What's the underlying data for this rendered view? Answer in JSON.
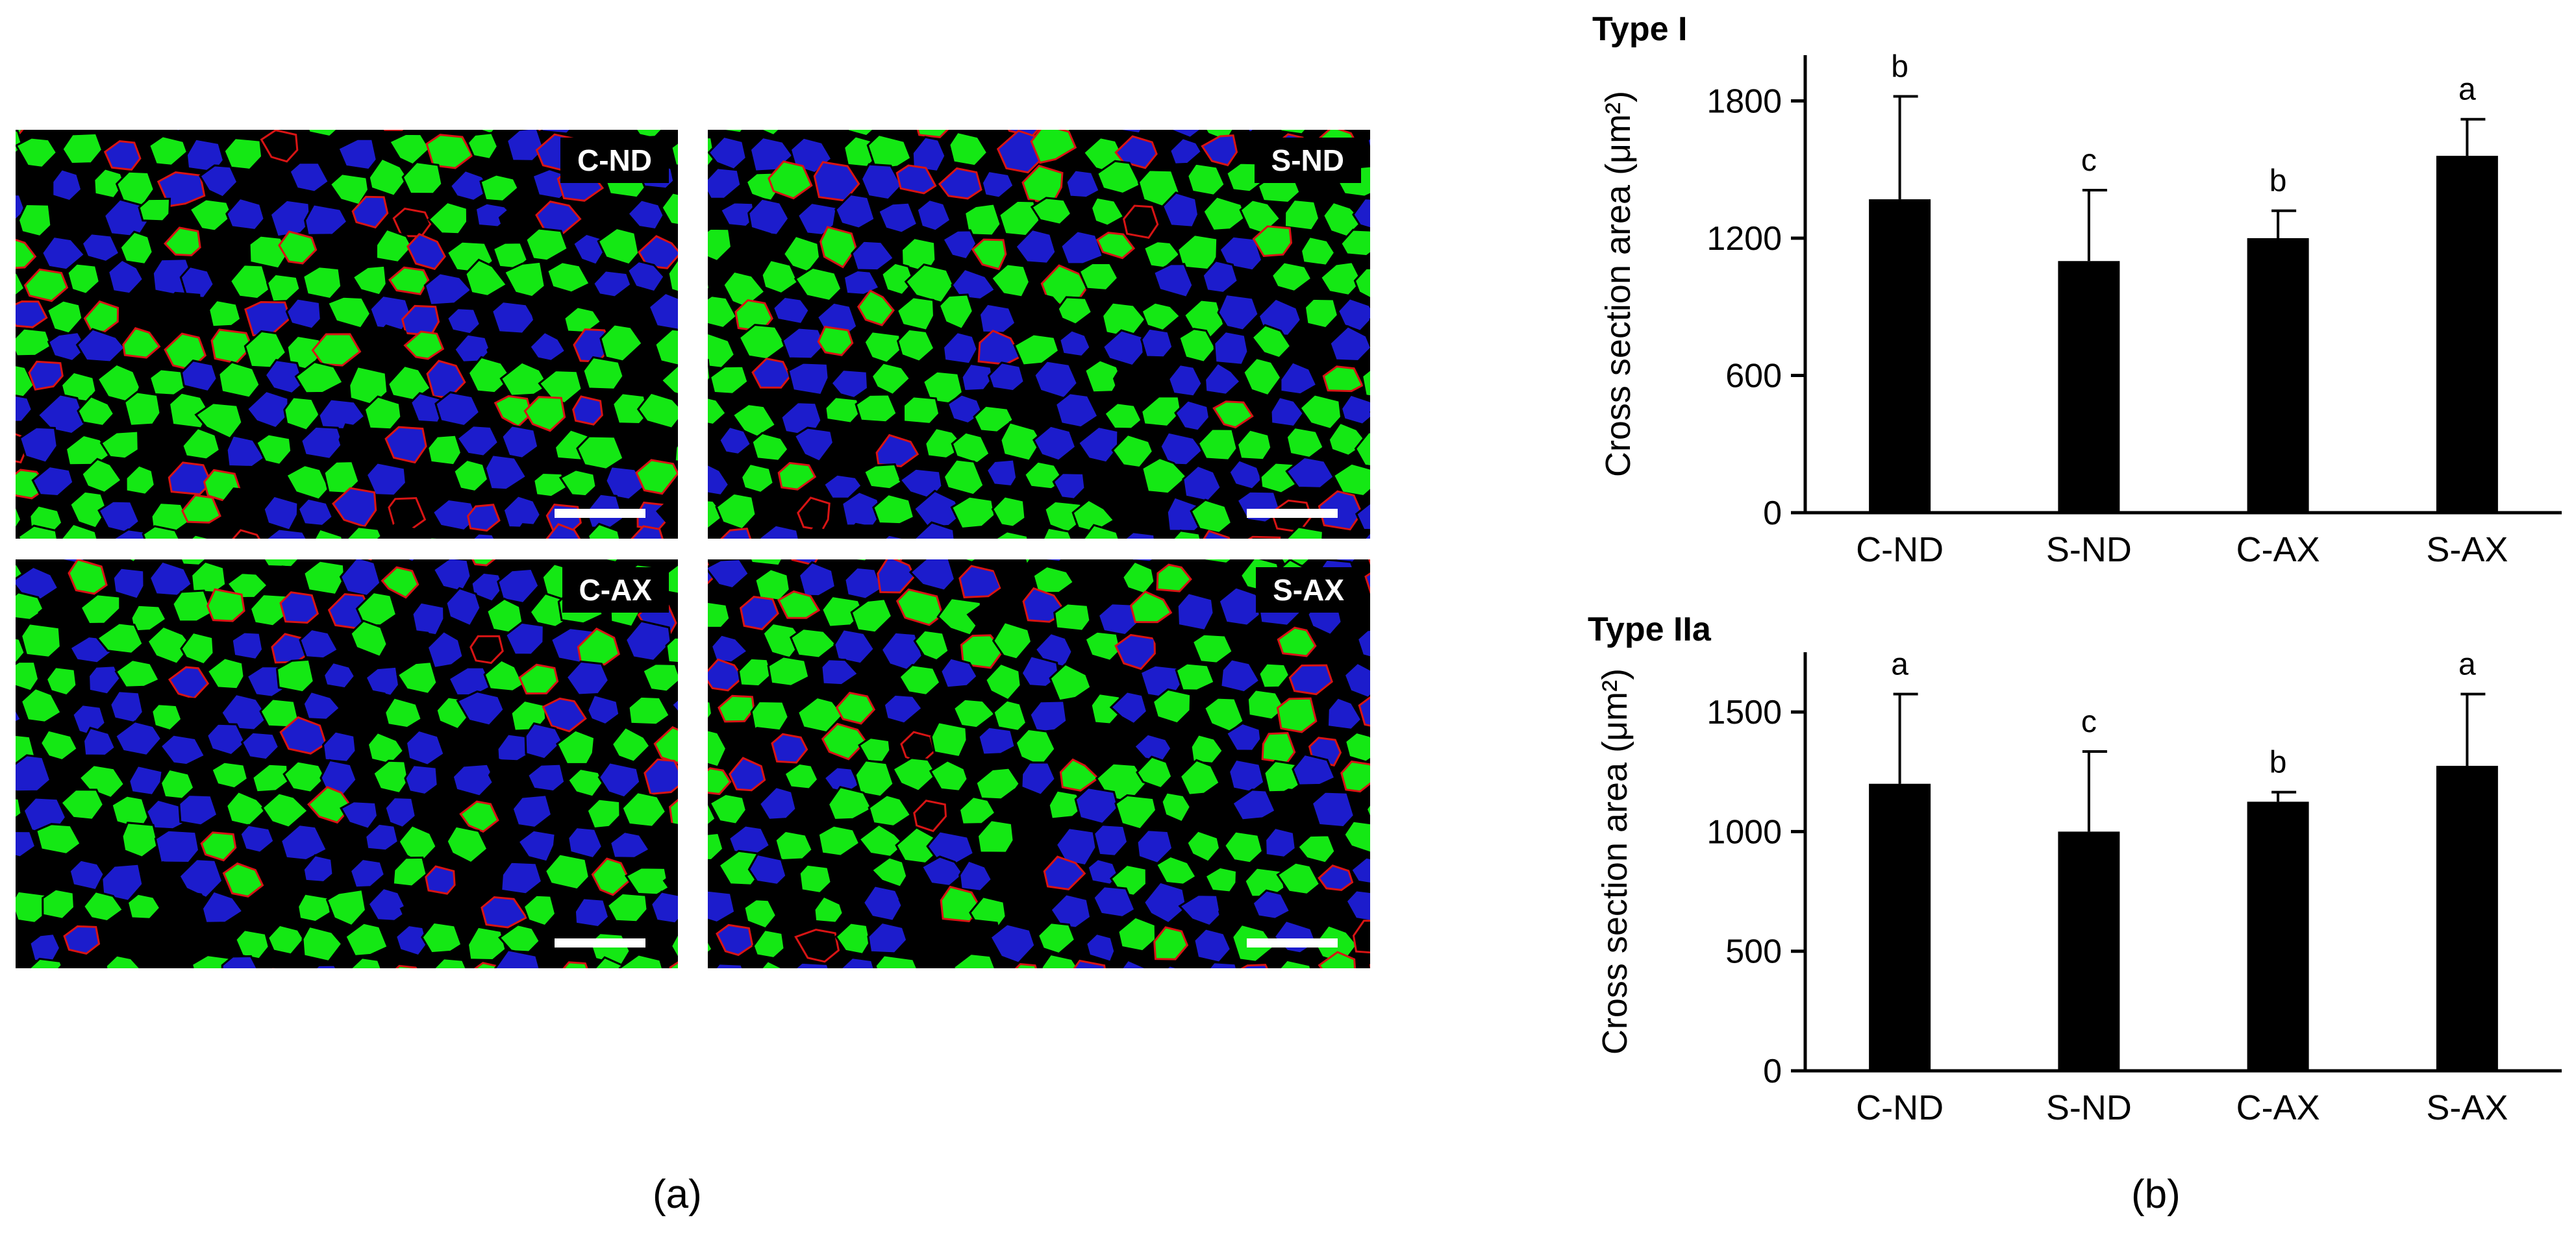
{
  "panel_a": {
    "caption": "(a)",
    "images": [
      {
        "label": "C-ND",
        "colors": [
          "#14e814",
          "#1c1ccc",
          "#d81414",
          "#000000"
        ]
      },
      {
        "label": "S-ND",
        "colors": [
          "#14e814",
          "#1c1ccc",
          "#d81414",
          "#000000"
        ]
      },
      {
        "label": "C-AX",
        "colors": [
          "#14e814",
          "#1c1ccc",
          "#d81414",
          "#000000"
        ]
      },
      {
        "label": "S-AX",
        "colors": [
          "#14e814",
          "#1c1ccc",
          "#d81414",
          "#000000"
        ]
      }
    ]
  },
  "panel_b": {
    "caption": "(b)"
  },
  "chart_data": [
    {
      "type": "bar",
      "title": "Type I",
      "ylabel": "Cross section area (μm²)",
      "xlabel": "",
      "categories": [
        "C-ND",
        "S-ND",
        "C-AX",
        "S-AX"
      ],
      "values": [
        1370,
        1100,
        1200,
        1560
      ],
      "errors": [
        450,
        310,
        120,
        160
      ],
      "significance_letters": [
        "b",
        "c",
        "b",
        "a"
      ],
      "yticks": [
        0,
        600,
        1200,
        1800
      ],
      "ylim": [
        0,
        2000
      ],
      "bar_color": "#000000",
      "grid": false
    },
    {
      "type": "bar",
      "title": "Type IIa",
      "ylabel": "Cross section area (μm²)",
      "xlabel": "",
      "categories": [
        "C-ND",
        "S-ND",
        "C-AX",
        "S-AX"
      ],
      "values": [
        1200,
        1000,
        1125,
        1275
      ],
      "errors": [
        375,
        335,
        40,
        300
      ],
      "significance_letters": [
        "a",
        "c",
        "b",
        "a"
      ],
      "yticks": [
        0,
        500,
        1000,
        1500
      ],
      "ylim": [
        0,
        1750
      ],
      "bar_color": "#000000",
      "grid": false
    }
  ]
}
